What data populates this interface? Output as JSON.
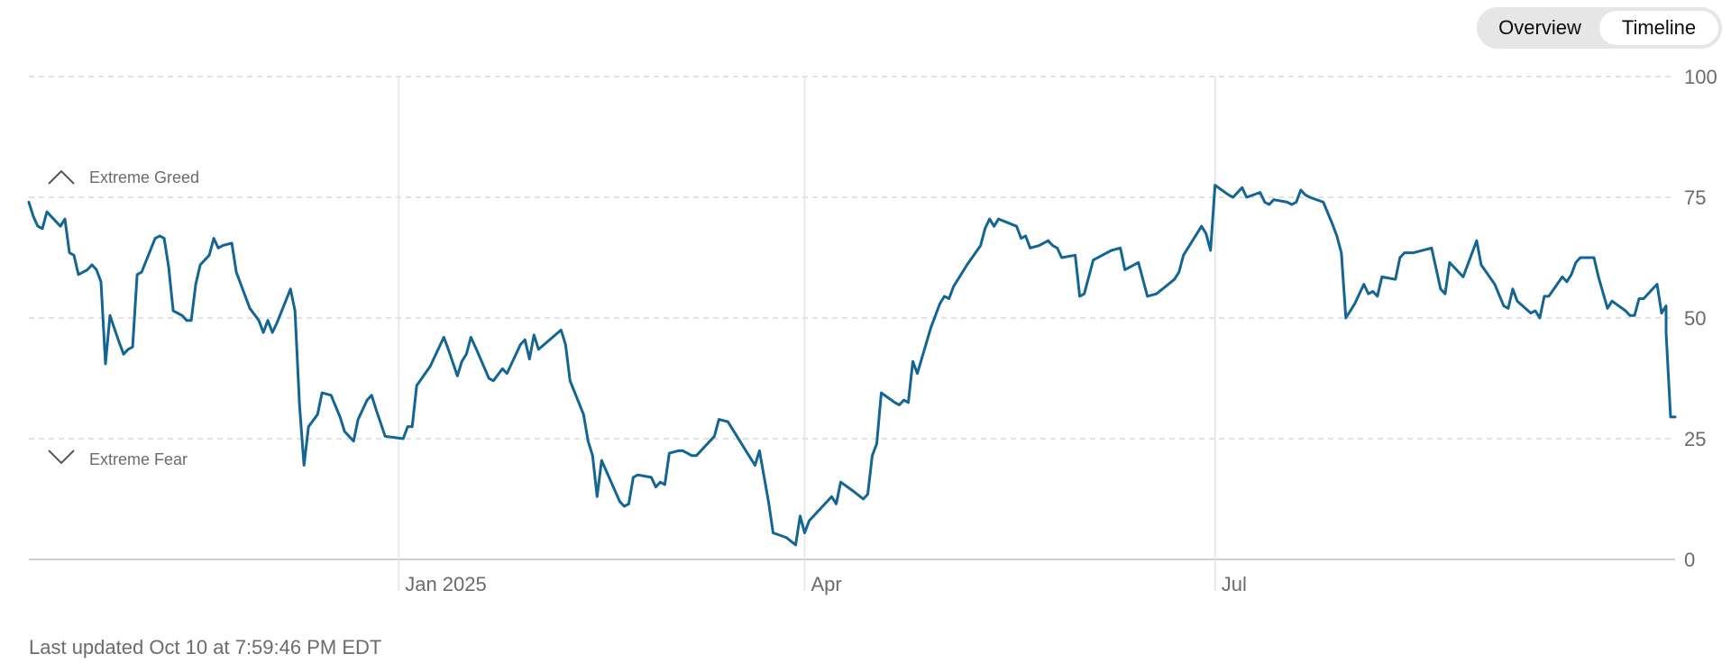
{
  "toggle": {
    "options": [
      "Overview",
      "Timeline"
    ],
    "selected": "Timeline"
  },
  "footer": {
    "last_updated": "Last updated Oct 10 at 7:59:46 PM EDT"
  },
  "colors": {
    "line": "#136593",
    "grid": "#d9d9d9",
    "text": "#6b6b6b",
    "icon": "#555555"
  },
  "chart_data": {
    "type": "line",
    "title": "",
    "xlabel": "",
    "ylabel": "",
    "ylim": [
      0,
      100
    ],
    "yticks": [
      0,
      25,
      50,
      75,
      100
    ],
    "grid": true,
    "x_tick_labels": [
      {
        "date": "2025-01-01",
        "label": "Jan 2025"
      },
      {
        "date": "2025-04-01",
        "label": "Apr"
      },
      {
        "date": "2025-07-01",
        "label": "Jul"
      }
    ],
    "zones": [
      {
        "label": "Extreme Greed",
        "icon": "chevron-up-icon",
        "value": 75
      },
      {
        "label": "Extreme Fear",
        "icon": "chevron-down-icon",
        "value": 25
      }
    ],
    "series": [
      {
        "points": [
          [
            "2024-10-11",
            74
          ],
          [
            "2024-10-12",
            71
          ],
          [
            "2024-10-13",
            69
          ],
          [
            "2024-10-14",
            68.5
          ],
          [
            "2024-10-15",
            72
          ],
          [
            "2024-10-17",
            70
          ],
          [
            "2024-10-18",
            69
          ],
          [
            "2024-10-19",
            70.5
          ],
          [
            "2024-10-20",
            63.5
          ],
          [
            "2024-10-21",
            63
          ],
          [
            "2024-10-22",
            59
          ],
          [
            "2024-10-24",
            60
          ],
          [
            "2024-10-25",
            61
          ],
          [
            "2024-10-26",
            60
          ],
          [
            "2024-10-27",
            57.5
          ],
          [
            "2024-10-28",
            40.5
          ],
          [
            "2024-10-29",
            50.5
          ],
          [
            "2024-10-31",
            45
          ],
          [
            "2024-11-01",
            42.5
          ],
          [
            "2024-11-02",
            43.5
          ],
          [
            "2024-11-03",
            44
          ],
          [
            "2024-11-04",
            59
          ],
          [
            "2024-11-05",
            59.5
          ],
          [
            "2024-11-08",
            66.5
          ],
          [
            "2024-11-09",
            67
          ],
          [
            "2024-11-10",
            66.5
          ],
          [
            "2024-11-11",
            60.5
          ],
          [
            "2024-11-12",
            51.5
          ],
          [
            "2024-11-14",
            50.5
          ],
          [
            "2024-11-15",
            49.5
          ],
          [
            "2024-11-16",
            49.5
          ],
          [
            "2024-11-17",
            57
          ],
          [
            "2024-11-18",
            61
          ],
          [
            "2024-11-20",
            63
          ],
          [
            "2024-11-21",
            66.5
          ],
          [
            "2024-11-22",
            64.5
          ],
          [
            "2024-11-23",
            65
          ],
          [
            "2024-11-25",
            65.5
          ],
          [
            "2024-11-26",
            59.5
          ],
          [
            "2024-11-27",
            57
          ],
          [
            "2024-11-29",
            52
          ],
          [
            "2024-12-01",
            49.5
          ],
          [
            "2024-12-02",
            47
          ],
          [
            "2024-12-03",
            49.5
          ],
          [
            "2024-12-04",
            47
          ],
          [
            "2024-12-05",
            49
          ],
          [
            "2024-12-08",
            56
          ],
          [
            "2024-12-09",
            51.5
          ],
          [
            "2024-12-10",
            32
          ],
          [
            "2024-12-11",
            19.5
          ],
          [
            "2024-12-12",
            27.5
          ],
          [
            "2024-12-14",
            30
          ],
          [
            "2024-12-15",
            34.5
          ],
          [
            "2024-12-17",
            34
          ],
          [
            "2024-12-19",
            29.5
          ],
          [
            "2024-12-20",
            26.5
          ],
          [
            "2024-12-22",
            24.5
          ],
          [
            "2024-12-23",
            29
          ],
          [
            "2024-12-25",
            33
          ],
          [
            "2024-12-26",
            34
          ],
          [
            "2024-12-27",
            31
          ],
          [
            "2024-12-29",
            25.5
          ],
          [
            "2025-01-02",
            25
          ],
          [
            "2025-01-03",
            27.5
          ],
          [
            "2025-01-04",
            27.5
          ],
          [
            "2025-01-05",
            36
          ],
          [
            "2025-01-08",
            40
          ],
          [
            "2025-01-10",
            44
          ],
          [
            "2025-01-11",
            46
          ],
          [
            "2025-01-12",
            43.5
          ],
          [
            "2025-01-14",
            38
          ],
          [
            "2025-01-15",
            41
          ],
          [
            "2025-01-16",
            42.5
          ],
          [
            "2025-01-17",
            46
          ],
          [
            "2025-01-18",
            44
          ],
          [
            "2025-01-21",
            37.5
          ],
          [
            "2025-01-22",
            37
          ],
          [
            "2025-01-24",
            39.5
          ],
          [
            "2025-01-25",
            38.5
          ],
          [
            "2025-01-26",
            40.5
          ],
          [
            "2025-01-28",
            44.5
          ],
          [
            "2025-01-29",
            45.5
          ],
          [
            "2025-01-30",
            41.5
          ],
          [
            "2025-01-31",
            46.5
          ],
          [
            "2025-02-01",
            43.5
          ],
          [
            "2025-02-06",
            47.5
          ],
          [
            "2025-02-07",
            44.5
          ],
          [
            "2025-02-08",
            37
          ],
          [
            "2025-02-11",
            30
          ],
          [
            "2025-02-12",
            24.5
          ],
          [
            "2025-02-13",
            21.5
          ],
          [
            "2025-02-14",
            13
          ],
          [
            "2025-02-15",
            20.5
          ],
          [
            "2025-02-19",
            12
          ],
          [
            "2025-02-20",
            11
          ],
          [
            "2025-02-21",
            11.5
          ],
          [
            "2025-02-22",
            17
          ],
          [
            "2025-02-23",
            17.5
          ],
          [
            "2025-02-26",
            17
          ],
          [
            "2025-02-27",
            15
          ],
          [
            "2025-02-28",
            16
          ],
          [
            "2025-03-01",
            15.5
          ],
          [
            "2025-03-02",
            22
          ],
          [
            "2025-03-04",
            22.5
          ],
          [
            "2025-03-05",
            22.5
          ],
          [
            "2025-03-07",
            21.5
          ],
          [
            "2025-03-08",
            21.5
          ],
          [
            "2025-03-12",
            25.5
          ],
          [
            "2025-03-13",
            29
          ],
          [
            "2025-03-15",
            28.5
          ],
          [
            "2025-03-18",
            24
          ],
          [
            "2025-03-21",
            19.5
          ],
          [
            "2025-03-22",
            22.5
          ],
          [
            "2025-03-24",
            12
          ],
          [
            "2025-03-25",
            5.5
          ],
          [
            "2025-03-28",
            4.5
          ],
          [
            "2025-03-30",
            3
          ],
          [
            "2025-03-31",
            9
          ],
          [
            "2025-04-01",
            5.5
          ],
          [
            "2025-04-02",
            8
          ],
          [
            "2025-04-05",
            11
          ],
          [
            "2025-04-07",
            13
          ],
          [
            "2025-04-08",
            11.5
          ],
          [
            "2025-04-09",
            16
          ],
          [
            "2025-04-12",
            14
          ],
          [
            "2025-04-14",
            12.5
          ],
          [
            "2025-04-15",
            13.5
          ],
          [
            "2025-04-16",
            21.5
          ],
          [
            "2025-04-17",
            24
          ],
          [
            "2025-04-18",
            34.5
          ],
          [
            "2025-04-21",
            32.5
          ],
          [
            "2025-04-22",
            32
          ],
          [
            "2025-04-23",
            33
          ],
          [
            "2025-04-24",
            32.5
          ],
          [
            "2025-04-25",
            41
          ],
          [
            "2025-04-26",
            38.5
          ],
          [
            "2025-04-29",
            48
          ],
          [
            "2025-05-01",
            53
          ],
          [
            "2025-05-02",
            54.5
          ],
          [
            "2025-05-03",
            54
          ],
          [
            "2025-05-04",
            56.5
          ],
          [
            "2025-05-06",
            59.5
          ],
          [
            "2025-05-07",
            61
          ],
          [
            "2025-05-10",
            65
          ],
          [
            "2025-05-11",
            68.5
          ],
          [
            "2025-05-12",
            70.5
          ],
          [
            "2025-05-13",
            69
          ],
          [
            "2025-05-14",
            70.5
          ],
          [
            "2025-05-18",
            69
          ],
          [
            "2025-05-19",
            66.5
          ],
          [
            "2025-05-20",
            67
          ],
          [
            "2025-05-21",
            64.5
          ],
          [
            "2025-05-23",
            65
          ],
          [
            "2025-05-25",
            66
          ],
          [
            "2025-05-26",
            65
          ],
          [
            "2025-05-27",
            64.5
          ],
          [
            "2025-05-28",
            62.5
          ],
          [
            "2025-05-31",
            63
          ],
          [
            "2025-06-01",
            54.5
          ],
          [
            "2025-06-02",
            55
          ],
          [
            "2025-06-04",
            62
          ],
          [
            "2025-06-06",
            63
          ],
          [
            "2025-06-08",
            64
          ],
          [
            "2025-06-10",
            64.5
          ],
          [
            "2025-06-11",
            60
          ],
          [
            "2025-06-14",
            61.5
          ],
          [
            "2025-06-16",
            54.5
          ],
          [
            "2025-06-18",
            55
          ],
          [
            "2025-06-20",
            56.5
          ],
          [
            "2025-06-22",
            58
          ],
          [
            "2025-06-23",
            59.5
          ],
          [
            "2025-06-24",
            63
          ],
          [
            "2025-06-26",
            66
          ],
          [
            "2025-06-28",
            69
          ],
          [
            "2025-06-29",
            67.5
          ],
          [
            "2025-06-30",
            64
          ],
          [
            "2025-07-01",
            77.5
          ],
          [
            "2025-07-04",
            75.5
          ],
          [
            "2025-07-05",
            75
          ],
          [
            "2025-07-07",
            77
          ],
          [
            "2025-07-08",
            75
          ],
          [
            "2025-07-11",
            76
          ],
          [
            "2025-07-12",
            74
          ],
          [
            "2025-07-13",
            73.5
          ],
          [
            "2025-07-14",
            74.5
          ],
          [
            "2025-07-17",
            74
          ],
          [
            "2025-07-18",
            73.5
          ],
          [
            "2025-07-19",
            74
          ],
          [
            "2025-07-20",
            76.5
          ],
          [
            "2025-07-21",
            75.5
          ],
          [
            "2025-07-22",
            75
          ],
          [
            "2025-07-25",
            74
          ],
          [
            "2025-07-27",
            69.5
          ],
          [
            "2025-07-28",
            67
          ],
          [
            "2025-07-29",
            63.5
          ],
          [
            "2025-07-30",
            50
          ],
          [
            "2025-08-01",
            53
          ],
          [
            "2025-08-02",
            55
          ],
          [
            "2025-08-03",
            57
          ],
          [
            "2025-08-04",
            55
          ],
          [
            "2025-08-05",
            55.5
          ],
          [
            "2025-08-06",
            54.5
          ],
          [
            "2025-08-07",
            58.5
          ],
          [
            "2025-08-10",
            58
          ],
          [
            "2025-08-11",
            62.5
          ],
          [
            "2025-08-12",
            63.5
          ],
          [
            "2025-08-14",
            63.5
          ],
          [
            "2025-08-18",
            64.5
          ],
          [
            "2025-08-20",
            56
          ],
          [
            "2025-08-21",
            55
          ],
          [
            "2025-08-22",
            61.5
          ],
          [
            "2025-08-25",
            58.5
          ],
          [
            "2025-08-27",
            63.5
          ],
          [
            "2025-08-28",
            66
          ],
          [
            "2025-08-29",
            61
          ],
          [
            "2025-09-01",
            57
          ],
          [
            "2025-09-03",
            52.5
          ],
          [
            "2025-09-04",
            52
          ],
          [
            "2025-09-05",
            56
          ],
          [
            "2025-09-06",
            53.5
          ],
          [
            "2025-09-09",
            51
          ],
          [
            "2025-09-10",
            51.5
          ],
          [
            "2025-09-11",
            50
          ],
          [
            "2025-09-12",
            54.5
          ],
          [
            "2025-09-13",
            54.5
          ],
          [
            "2025-09-16",
            58.5
          ],
          [
            "2025-09-17",
            57.5
          ],
          [
            "2025-09-18",
            59
          ],
          [
            "2025-09-19",
            61.5
          ],
          [
            "2025-09-20",
            62.5
          ],
          [
            "2025-09-23",
            62.5
          ],
          [
            "2025-09-24",
            58.5
          ],
          [
            "2025-09-26",
            52
          ],
          [
            "2025-09-27",
            53.5
          ],
          [
            "2025-09-30",
            51.5
          ],
          [
            "2025-10-01",
            50.5
          ],
          [
            "2025-10-02",
            50.5
          ],
          [
            "2025-10-03",
            54
          ],
          [
            "2025-10-04",
            54
          ],
          [
            "2025-10-07",
            57
          ],
          [
            "2025-10-08",
            51
          ],
          [
            "2025-10-09",
            52.5
          ],
          [
            "2025-10-09",
            47
          ],
          [
            "2025-10-10",
            29.5
          ],
          [
            "2025-10-11",
            29.5
          ]
        ]
      }
    ]
  }
}
